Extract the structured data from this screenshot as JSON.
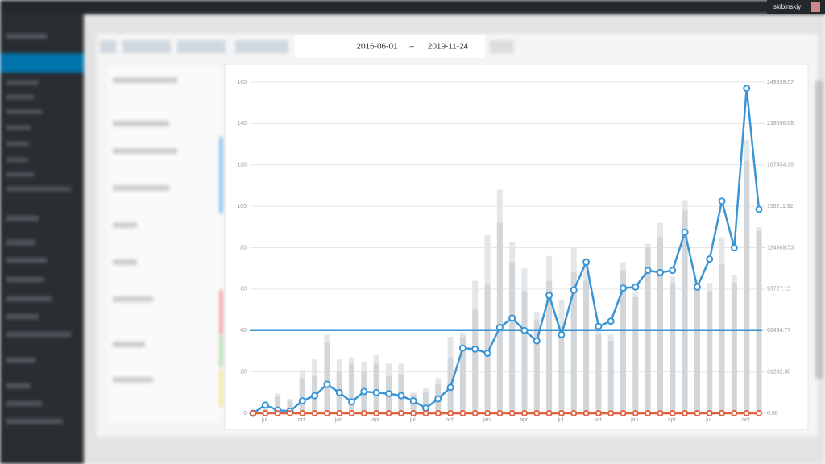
{
  "user": "skibinskiy",
  "toolbar": {
    "date_from": "2016-06-01",
    "separator": "–",
    "date_to": "2019-11-24"
  },
  "chart_data": {
    "type": "bar",
    "categories": [
      null,
      "jul.",
      null,
      null,
      "oct.",
      null,
      null,
      "jan.",
      null,
      null,
      "apr.",
      null,
      null,
      "jul.",
      null,
      null,
      "oct.",
      null,
      null,
      "jan.",
      null,
      null,
      "apr.",
      null,
      null,
      "jul.",
      null,
      null,
      "oct.",
      null,
      null,
      "jan.",
      null,
      null,
      "apr.",
      null,
      null,
      "jul.",
      null,
      null,
      "oct.",
      null
    ],
    "ylim": [
      0,
      160
    ],
    "yticks": [
      0,
      20,
      40,
      60,
      80,
      100,
      120,
      140,
      160
    ],
    "y2lim": [
      0,
      249939.07
    ],
    "y2ticks": [
      {
        "value": 0,
        "label": "0.00"
      },
      31242.38,
      62484.77,
      93727.15,
      124969.53,
      156211.92,
      {
        "value": 187454.3,
        "label": "187454.30"
      },
      218696.68,
      249939.07
    ],
    "grid": true,
    "reference_line": 40,
    "reference_color": "#3a95d5",
    "series": [
      {
        "type": "bar",
        "color": "#e4e7e9",
        "values": [
          1,
          3,
          9.5,
          7,
          21,
          26,
          38,
          26,
          27,
          25,
          28,
          24,
          24,
          10,
          12,
          17,
          37,
          39,
          64,
          86,
          108,
          83,
          70,
          49,
          76,
          55,
          80,
          75,
          42,
          38,
          73,
          59,
          82,
          92,
          66,
          103,
          64,
          63,
          85,
          67,
          132,
          90
        ]
      },
      {
        "type": "bar",
        "color": "#d2d6d9",
        "values": [
          0.5,
          2,
          8,
          6,
          17,
          18,
          34,
          20,
          24,
          20,
          24,
          18,
          19,
          9,
          10,
          14,
          27,
          37,
          50,
          62,
          92,
          73,
          59,
          45,
          64,
          40,
          68,
          64,
          38,
          35,
          69,
          56,
          80,
          85,
          63,
          98,
          61,
          59,
          72,
          63,
          122,
          88
        ]
      },
      {
        "type": "line",
        "axis": "y2",
        "color": "#3a95d5",
        "values": [
          0,
          6250,
          2340,
          1560,
          9370,
          13280,
          21870,
          15620,
          8590,
          16400,
          15620,
          14840,
          13280,
          9370,
          3910,
          10930,
          19530,
          49210,
          48430,
          45300,
          64830,
          71860,
          62480,
          54670,
          89040,
          59360,
          92950,
          114030,
          65610,
          69510,
          94510,
          95290,
          107790,
          106220,
          107790,
          136690,
          95290,
          116380,
          160120,
          124970,
          245250,
          153870
        ]
      },
      {
        "type": "line",
        "color": "#e0603f",
        "values": [
          0,
          0,
          0,
          0,
          0,
          0,
          0,
          0,
          0,
          0,
          0,
          0,
          0,
          0,
          0,
          0,
          0,
          0,
          0,
          0,
          0,
          0,
          0,
          0,
          0,
          0,
          0,
          0,
          0,
          0,
          0,
          0,
          0,
          0,
          0,
          0,
          0,
          0,
          0,
          0,
          0,
          0
        ]
      }
    ]
  }
}
